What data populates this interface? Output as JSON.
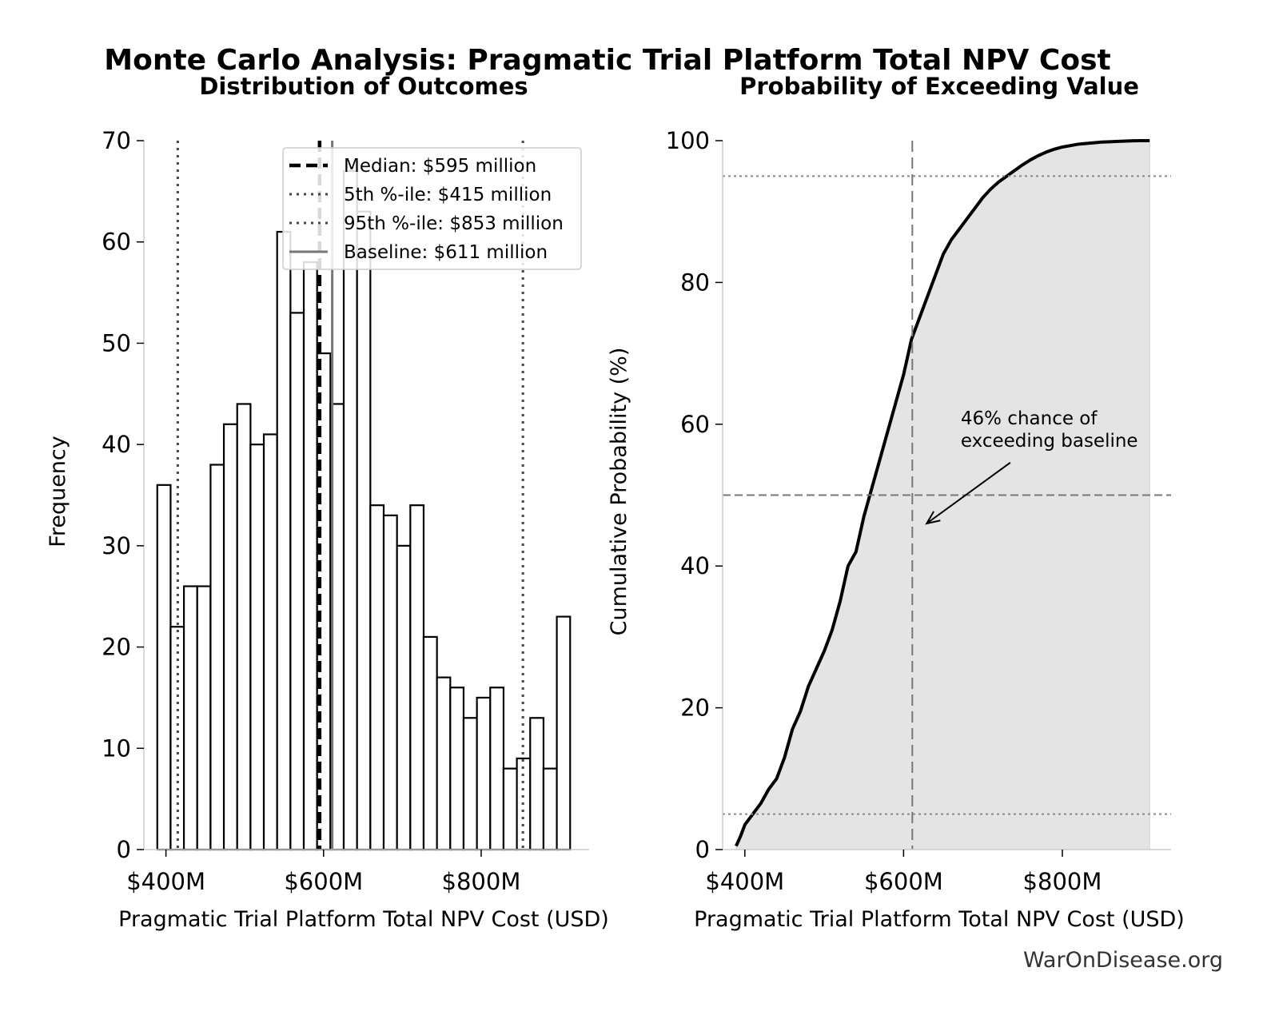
{
  "suptitle": "Monte Carlo Analysis: Pragmatic Trial Platform Total NPV Cost",
  "watermark": "WarOnDisease.org",
  "chart_data": [
    {
      "type": "bar",
      "title": "Distribution of Outcomes",
      "xlabel": "Pragmatic Trial Platform Total NPV Cost (USD)",
      "ylabel": "Frequency",
      "xlim": [
        372,
        937
      ],
      "ylim": [
        0,
        70
      ],
      "x_ticks": [
        400,
        600,
        800
      ],
      "x_tick_labels": [
        "$400M",
        "$600M",
        "$800M"
      ],
      "y_ticks": [
        0,
        10,
        20,
        30,
        40,
        50,
        60,
        70
      ],
      "y_tick_labels": [
        "0",
        "10",
        "20",
        "30",
        "40",
        "50",
        "60",
        "70"
      ],
      "bin_start": 389,
      "bin_width": 16.9,
      "values": [
        36,
        22,
        26,
        26,
        38,
        42,
        44,
        40,
        41,
        61,
        53,
        58,
        49,
        44,
        67,
        63,
        34,
        33,
        30,
        34,
        21,
        17,
        16,
        13,
        15,
        16,
        8,
        9,
        13,
        8,
        23
      ],
      "bar_color": "#ffffff",
      "edge_color": "#000000",
      "reference_lines": [
        {
          "label": "Median: $595 million",
          "x": 595,
          "style": "dashed",
          "color": "#000000"
        },
        {
          "label": "5th %-ile: $415 million",
          "x": 415,
          "style": "dotted",
          "color": "#444444"
        },
        {
          "label": "95th %-ile: $853 million",
          "x": 853,
          "style": "dotted",
          "color": "#444444"
        },
        {
          "label": "Baseline: $611 million",
          "x": 611,
          "style": "solid",
          "color": "#777777"
        }
      ],
      "legend_position": "top-right"
    },
    {
      "type": "line",
      "title": "Probability of Exceeding Value",
      "xlabel": "Pragmatic Trial Platform Total NPV Cost (USD)",
      "ylabel": "Cumulative Probability (%)",
      "xlim": [
        372,
        937
      ],
      "ylim": [
        0,
        100
      ],
      "x_ticks": [
        400,
        600,
        800
      ],
      "x_tick_labels": [
        "$400M",
        "$600M",
        "$800M"
      ],
      "y_ticks": [
        0,
        20,
        40,
        60,
        80,
        100
      ],
      "y_tick_labels": [
        "0",
        "20",
        "40",
        "60",
        "80",
        "100"
      ],
      "x": [
        389,
        395,
        400,
        410,
        420,
        430,
        440,
        450,
        460,
        470,
        480,
        490,
        500,
        510,
        520,
        530,
        540,
        550,
        560,
        570,
        580,
        590,
        600,
        610,
        620,
        630,
        640,
        650,
        660,
        670,
        680,
        690,
        700,
        710,
        720,
        730,
        740,
        750,
        760,
        770,
        780,
        790,
        800,
        810,
        820,
        830,
        840,
        850,
        860,
        870,
        880,
        890,
        900,
        910
      ],
      "values": [
        0.5,
        2,
        3.5,
        5,
        6.5,
        8.5,
        10,
        13,
        17,
        19.5,
        23,
        25.5,
        28,
        31,
        35,
        40,
        42,
        47,
        51,
        55,
        59,
        63,
        67,
        72,
        75,
        78,
        81,
        84,
        86,
        87.5,
        89,
        90.5,
        92,
        93.2,
        94.2,
        95,
        95.8,
        96.6,
        97.3,
        97.9,
        98.4,
        98.8,
        99.1,
        99.3,
        99.5,
        99.6,
        99.7,
        99.8,
        99.85,
        99.9,
        99.95,
        99.98,
        100,
        100
      ],
      "fill_color": "#e4e4e4",
      "line_color": "#000000",
      "reference_lines": [
        {
          "orientation": "vertical",
          "x": 611,
          "style": "dashed",
          "color": "#777777"
        },
        {
          "orientation": "horizontal",
          "y": 50,
          "style": "dashed",
          "color": "#777777"
        },
        {
          "orientation": "horizontal",
          "y": 5,
          "style": "dotted",
          "color": "#888888"
        },
        {
          "orientation": "horizontal",
          "y": 95,
          "style": "dotted",
          "color": "#888888"
        }
      ],
      "annotation": {
        "lines": [
          "46% chance of",
          "exceeding baseline"
        ],
        "text_x": 672,
        "text_y": 60,
        "arrow_to_x": 611,
        "arrow_to_y": 46
      }
    }
  ]
}
